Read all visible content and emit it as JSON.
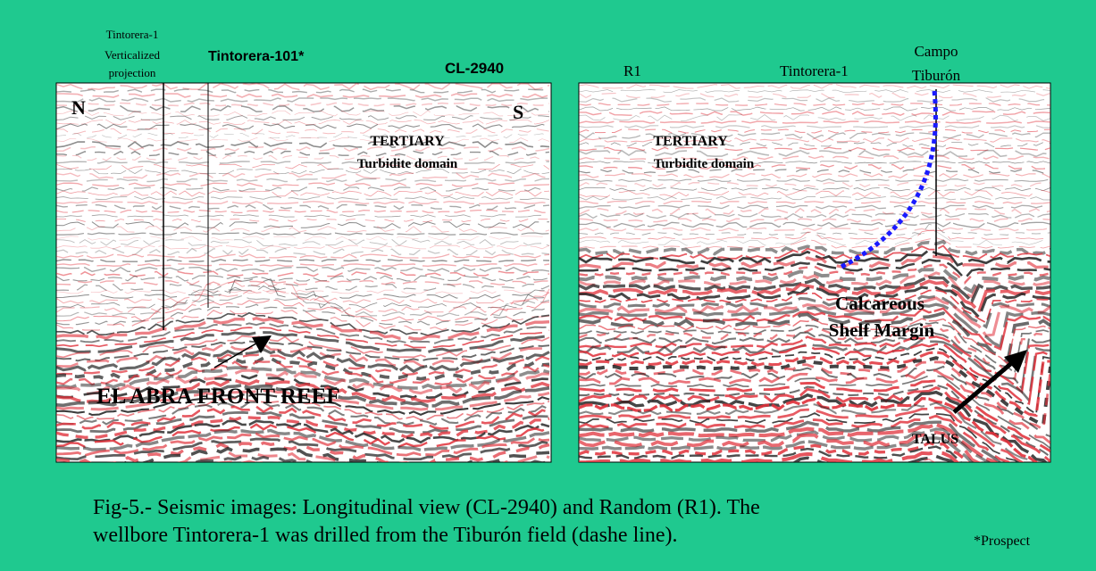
{
  "left_panel": {
    "well_label": [
      "Tintorera-1",
      "Verticalized",
      "projection"
    ],
    "prospect": "Tintorera-101*",
    "line_name": "CL-2940",
    "north": "N",
    "south": "S",
    "domain_title": "TERTIARY",
    "domain_subtitle": "Turbidite domain",
    "reef_label": "EL ABRA FRONT REEF"
  },
  "right_panel": {
    "line_name": "R1",
    "well": "Tintorera-1",
    "field": [
      "Campo",
      "Tiburón"
    ],
    "domain_title": "TERTIARY",
    "domain_subtitle": "Turbidite domain",
    "margin_label": [
      "Calcareous",
      "Shelf Margin"
    ],
    "talus": "TALUS"
  },
  "caption": {
    "lines": [
      "Fig-5.- Seismic images: Longitudinal view (CL-2940) and Random  (R1).  The",
      "wellbore Tintorera-1 was drilled from the Tiburón field (dashe line)."
    ],
    "note": "*Prospect"
  }
}
